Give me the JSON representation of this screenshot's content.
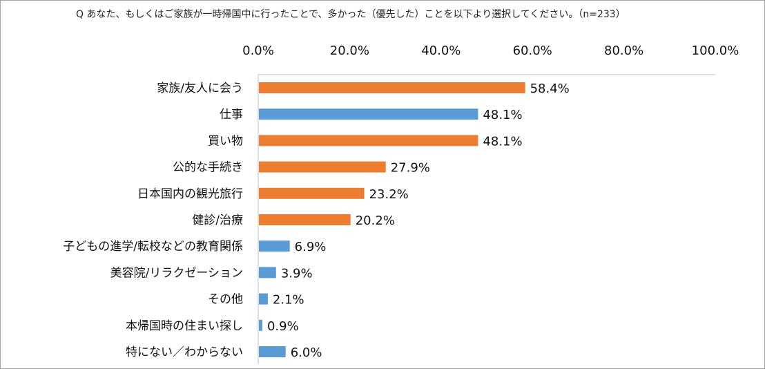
{
  "header": {
    "question": "Q あなた、もしくはご家族が一時帰国中に行ったことで、多かった（優先した）ことを以下より選択してください。（n=233）"
  },
  "colors": {
    "highlight": "#ed7d31",
    "default": "#5b9bd5"
  },
  "chart_data": {
    "type": "bar",
    "orientation": "horizontal",
    "title": "",
    "xlabel": "",
    "ylabel": "",
    "xlim": [
      0,
      100
    ],
    "x_ticks": [
      "0.0%",
      "20.0%",
      "40.0%",
      "60.0%",
      "80.0%",
      "100.0%"
    ],
    "x_axis_position": "top",
    "grid": false,
    "categories": [
      "家族/友人に会う",
      "仕事",
      "買い物",
      "公的な手続き",
      "日本国内の観光旅行",
      "健診/治療",
      "子どもの進学/転校などの教育関係",
      "美容院/リラクゼーション",
      "その他",
      "本帰国時の住まい探し",
      "特にない／わからない"
    ],
    "values": [
      58.4,
      48.1,
      48.1,
      27.9,
      23.2,
      20.2,
      6.9,
      3.9,
      2.1,
      0.9,
      6.0
    ],
    "value_labels": [
      "58.4%",
      "48.1%",
      "48.1%",
      "27.9%",
      "23.2%",
      "20.2%",
      "6.9%",
      "3.9%",
      "2.1%",
      "0.9%",
      "6.0%"
    ],
    "bar_colors": [
      "#ed7d31",
      "#5b9bd5",
      "#ed7d31",
      "#ed7d31",
      "#ed7d31",
      "#ed7d31",
      "#5b9bd5",
      "#5b9bd5",
      "#5b9bd5",
      "#5b9bd5",
      "#5b9bd5"
    ]
  }
}
